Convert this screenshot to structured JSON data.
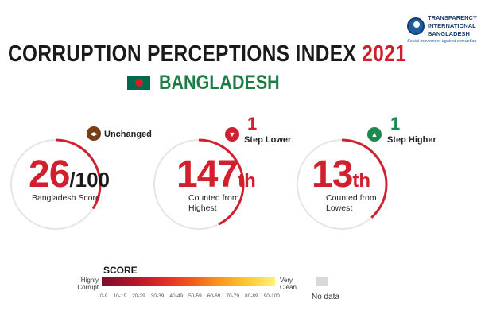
{
  "header": {
    "title": "CORRUPTION PERCEPTIONS INDEX",
    "year": "2021",
    "country": "BANGLADESH"
  },
  "logo": {
    "line1": "TRANSPARENCY",
    "line2": "INTERNATIONAL",
    "line3": "BANGLADESH",
    "tagline": "Social movement against corruption"
  },
  "colors": {
    "accent_red": "#d21f2e",
    "accent_green": "#1f8a4d",
    "unchanged_brown": "#7a3d16",
    "flag_green": "#006a4e"
  },
  "stats": [
    {
      "status_icon": "left-right-arrows-icon",
      "status": "Unchanged",
      "value": "26",
      "unit": "/100",
      "caption": "Bangladesh Score",
      "score_fraction": 0.26
    },
    {
      "status_icon": "down-triangle-icon",
      "change": "1",
      "status": "Step Lower",
      "value": "147",
      "suffix": "th",
      "caption_line1": "Counted from",
      "caption_line2": "Highest"
    },
    {
      "status_icon": "up-triangle-icon",
      "change": "1",
      "status": "Step Higher",
      "value": "13",
      "suffix": "th",
      "caption_line1": "Counted from",
      "caption_line2": "Lowest"
    }
  ],
  "legend": {
    "title": "SCORE",
    "low_line1": "Highly",
    "low_line2": "Corrupt",
    "high_line1": "Very",
    "high_line2": "Clean",
    "ranges": [
      "0-9",
      "10-19",
      "20-29",
      "30-39",
      "40-49",
      "50-59",
      "60-69",
      "70-79",
      "80-89",
      "90-100"
    ],
    "no_data": "No data"
  }
}
